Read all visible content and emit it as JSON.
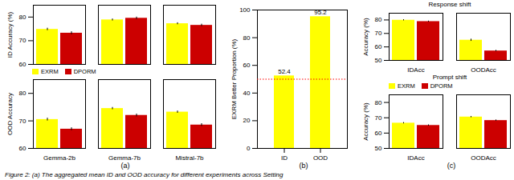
{
  "chart_data": [
    {
      "type": "bar",
      "categories": [
        null,
        null,
        null
      ],
      "tick_labels": "y",
      "ylabel": "ID Accuracy (%)",
      "ylim": [
        60,
        85
      ],
      "yticks": [
        60,
        70,
        80
      ],
      "grid": false,
      "series": [
        {
          "name": "EXRM",
          "color": "#ffff00",
          "values": [
            74.8,
            78.8,
            77.2
          ],
          "errors": [
            0.5,
            0.4,
            0.4
          ]
        },
        {
          "name": "DPORM",
          "color": "#cc0000",
          "values": [
            73.2,
            79.5,
            76.5
          ],
          "errors": [
            0.6,
            0.5,
            0.5
          ]
        }
      ]
    },
    {
      "type": "bar",
      "categories": [
        "Gemma-2b",
        "Gemma-7b",
        "Mistral-7b"
      ],
      "ylabel": "OOD Accuracy",
      "ylim": [
        60,
        85
      ],
      "yticks": [
        60,
        70,
        80
      ],
      "grid": false,
      "legend": "upper left",
      "annotations": [
        "(a)"
      ],
      "series": [
        {
          "name": "EXRM",
          "color": "#ffff00",
          "values": [
            70.5,
            74.5,
            73.2
          ],
          "errors": [
            0.5,
            0.4,
            0.4
          ]
        },
        {
          "name": "DPORM",
          "color": "#cc0000",
          "values": [
            67.0,
            72.0,
            68.5
          ],
          "errors": [
            0.5,
            0.5,
            0.5
          ]
        }
      ]
    },
    {
      "type": "bar",
      "categories": [
        "ID",
        "OOD"
      ],
      "values": [
        52.4,
        95.2
      ],
      "color": "#ffff00",
      "data_labels": true,
      "ylabel": "EXRM Better Proportion (%)",
      "ylim": [
        0,
        100
      ],
      "yticks": [
        0,
        20,
        40,
        60,
        80,
        100
      ],
      "grid": false,
      "hlines": [
        {
          "value": 50,
          "color": "red",
          "line_style": "dotted"
        }
      ],
      "annotations": [
        "(b)"
      ]
    },
    {
      "type": "bar",
      "title": "Response shift",
      "categories": [
        "IDAcc",
        "OODAcc"
      ],
      "ylabel": "Accuracy (%)",
      "ylim": [
        50,
        85
      ],
      "yticks": [
        50,
        60,
        70,
        80
      ],
      "grid": false,
      "series": [
        {
          "name": "EXRM",
          "color": "#ffff00",
          "values": [
            79.8,
            65.0
          ],
          "errors": [
            0.4,
            0.8
          ]
        },
        {
          "name": "DPORM",
          "color": "#cc0000",
          "values": [
            78.8,
            57.0
          ],
          "errors": [
            0.4,
            0.5
          ]
        }
      ]
    },
    {
      "type": "bar",
      "title": "Prompt shift",
      "categories": [
        "IDAcc",
        "OODAcc"
      ],
      "ylabel": "Accuracy (%)",
      "ylim": [
        50,
        85
      ],
      "yticks": [
        50,
        60,
        70,
        80
      ],
      "grid": false,
      "legend": "upper left",
      "annotations": [
        "(c)"
      ],
      "series": [
        {
          "name": "EXRM",
          "color": "#ffff00",
          "values": [
            66.5,
            70.5
          ],
          "errors": [
            0.4,
            0.4
          ]
        },
        {
          "name": "DPORM",
          "color": "#cc0000",
          "values": [
            65.0,
            68.2
          ],
          "errors": [
            0.4,
            0.4
          ]
        }
      ]
    }
  ],
  "caption": "Figure 2: (a) The aggregated mean ID and OOD accuracy for different experiments across Setting"
}
